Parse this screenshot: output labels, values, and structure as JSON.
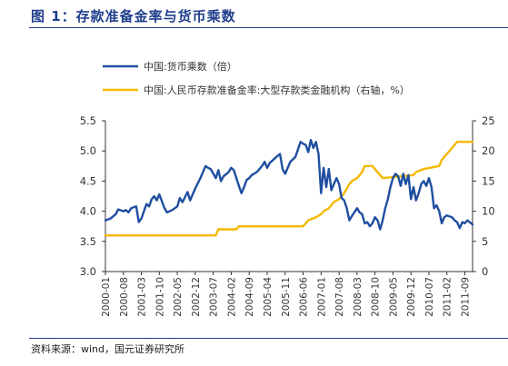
{
  "header": {
    "title": "图 1：存款准备金率与货币乘数"
  },
  "footer": {
    "source": "资料来源：wind，国元证券研究所"
  },
  "colors": {
    "title": "#1f3e8c",
    "series_1": "#1f4e9f",
    "series_2": "#f5b800"
  },
  "chart_data": {
    "type": "line",
    "grid": false,
    "legend_position": "top-left",
    "x_range": [
      "2000-01",
      "2011-12"
    ],
    "x_tick_labels": [
      "2000-01",
      "2000-08",
      "2001-03",
      "2001-10",
      "2002-05",
      "2002-12",
      "2003-07",
      "2004-02",
      "2004-09",
      "2005-04",
      "2005-11",
      "2006-06",
      "2007-01",
      "2007-08",
      "2008-03",
      "2008-10",
      "2009-05",
      "2009-12",
      "2010-07",
      "2011-02",
      "2011-09"
    ],
    "y_left": {
      "range": [
        3.0,
        5.5
      ],
      "ticks": [
        "3.0",
        "3.5",
        "4.0",
        "4.5",
        "5.0",
        "5.5"
      ]
    },
    "y_right": {
      "range": [
        0,
        25
      ],
      "ticks": [
        "0",
        "5",
        "10",
        "15",
        "20",
        "25"
      ]
    },
    "series": [
      {
        "name": "中国:货币乘数（倍）",
        "axis": "left",
        "points": [
          [
            "2000-01",
            3.85
          ],
          [
            "2000-03",
            3.88
          ],
          [
            "2000-05",
            3.95
          ],
          [
            "2000-06",
            4.03
          ],
          [
            "2000-08",
            4.0
          ],
          [
            "2000-09",
            4.02
          ],
          [
            "2000-10",
            3.98
          ],
          [
            "2000-11",
            4.05
          ],
          [
            "2001-01",
            4.08
          ],
          [
            "2001-02",
            3.82
          ],
          [
            "2001-03",
            3.88
          ],
          [
            "2001-05",
            4.12
          ],
          [
            "2001-06",
            4.08
          ],
          [
            "2001-07",
            4.2
          ],
          [
            "2001-08",
            4.25
          ],
          [
            "2001-09",
            4.18
          ],
          [
            "2001-10",
            4.28
          ],
          [
            "2001-12",
            4.05
          ],
          [
            "2002-01",
            3.98
          ],
          [
            "2002-03",
            4.02
          ],
          [
            "2002-05",
            4.08
          ],
          [
            "2002-06",
            4.22
          ],
          [
            "2002-07",
            4.15
          ],
          [
            "2002-09",
            4.32
          ],
          [
            "2002-10",
            4.18
          ],
          [
            "2002-12",
            4.38
          ],
          [
            "2003-02",
            4.55
          ],
          [
            "2003-04",
            4.75
          ],
          [
            "2003-05",
            4.72
          ],
          [
            "2003-06",
            4.7
          ],
          [
            "2003-08",
            4.55
          ],
          [
            "2003-09",
            4.68
          ],
          [
            "2003-10",
            4.5
          ],
          [
            "2003-11",
            4.58
          ],
          [
            "2004-01",
            4.65
          ],
          [
            "2004-02",
            4.72
          ],
          [
            "2004-03",
            4.68
          ],
          [
            "2004-05",
            4.42
          ],
          [
            "2004-06",
            4.3
          ],
          [
            "2004-07",
            4.4
          ],
          [
            "2004-08",
            4.52
          ],
          [
            "2004-09",
            4.55
          ],
          [
            "2004-10",
            4.6
          ],
          [
            "2004-12",
            4.65
          ],
          [
            "2005-02",
            4.75
          ],
          [
            "2005-03",
            4.82
          ],
          [
            "2005-04",
            4.72
          ],
          [
            "2005-05",
            4.8
          ],
          [
            "2005-07",
            4.88
          ],
          [
            "2005-09",
            4.95
          ],
          [
            "2005-10",
            4.7
          ],
          [
            "2005-11",
            4.62
          ],
          [
            "2006-01",
            4.82
          ],
          [
            "2006-03",
            4.9
          ],
          [
            "2006-05",
            5.15
          ],
          [
            "2006-06",
            5.12
          ],
          [
            "2006-07",
            5.1
          ],
          [
            "2006-08",
            4.98
          ],
          [
            "2006-09",
            5.18
          ],
          [
            "2006-10",
            5.05
          ],
          [
            "2006-11",
            5.15
          ],
          [
            "2006-12",
            4.95
          ],
          [
            "2007-01",
            4.3
          ],
          [
            "2007-02",
            4.72
          ],
          [
            "2007-03",
            4.4
          ],
          [
            "2007-04",
            4.7
          ],
          [
            "2007-05",
            4.35
          ],
          [
            "2007-06",
            4.45
          ],
          [
            "2007-07",
            4.55
          ],
          [
            "2007-08",
            4.45
          ],
          [
            "2007-09",
            4.22
          ],
          [
            "2007-10",
            4.18
          ],
          [
            "2007-11",
            4.05
          ],
          [
            "2007-12",
            3.85
          ],
          [
            "2008-01",
            3.92
          ],
          [
            "2008-03",
            4.05
          ],
          [
            "2008-04",
            3.98
          ],
          [
            "2008-05",
            3.95
          ],
          [
            "2008-06",
            3.8
          ],
          [
            "2008-07",
            3.82
          ],
          [
            "2008-08",
            3.75
          ],
          [
            "2008-09",
            3.8
          ],
          [
            "2008-10",
            3.9
          ],
          [
            "2008-11",
            3.85
          ],
          [
            "2008-12",
            3.7
          ],
          [
            "2009-01",
            3.85
          ],
          [
            "2009-02",
            4.05
          ],
          [
            "2009-03",
            4.2
          ],
          [
            "2009-04",
            4.4
          ],
          [
            "2009-05",
            4.55
          ],
          [
            "2009-06",
            4.62
          ],
          [
            "2009-07",
            4.58
          ],
          [
            "2009-08",
            4.42
          ],
          [
            "2009-09",
            4.62
          ],
          [
            "2009-10",
            4.45
          ],
          [
            "2009-11",
            4.6
          ],
          [
            "2009-12",
            4.2
          ],
          [
            "2010-01",
            4.4
          ],
          [
            "2010-02",
            4.18
          ],
          [
            "2010-03",
            4.3
          ],
          [
            "2010-04",
            4.45
          ],
          [
            "2010-05",
            4.5
          ],
          [
            "2010-06",
            4.42
          ],
          [
            "2010-07",
            4.55
          ],
          [
            "2010-08",
            4.4
          ],
          [
            "2010-09",
            4.05
          ],
          [
            "2010-10",
            4.1
          ],
          [
            "2010-11",
            4.0
          ],
          [
            "2010-12",
            3.8
          ],
          [
            "2011-01",
            3.9
          ],
          [
            "2011-02",
            3.93
          ],
          [
            "2011-04",
            3.9
          ],
          [
            "2011-05",
            3.85
          ],
          [
            "2011-06",
            3.82
          ],
          [
            "2011-07",
            3.72
          ],
          [
            "2011-08",
            3.82
          ],
          [
            "2011-09",
            3.8
          ],
          [
            "2011-10",
            3.85
          ],
          [
            "2011-12",
            3.78
          ]
        ]
      },
      {
        "name": "中国:人民币存款准备金率:大型存款类金融机构（右轴，%）",
        "axis": "right",
        "points": [
          [
            "2000-01",
            6
          ],
          [
            "2003-08",
            6
          ],
          [
            "2003-09",
            7
          ],
          [
            "2004-04",
            7
          ],
          [
            "2004-05",
            7.5
          ],
          [
            "2006-06",
            7.5
          ],
          [
            "2006-07",
            8
          ],
          [
            "2006-08",
            8.5
          ],
          [
            "2006-11",
            9
          ],
          [
            "2007-01",
            9.5
          ],
          [
            "2007-02",
            10
          ],
          [
            "2007-04",
            10.5
          ],
          [
            "2007-05",
            11
          ],
          [
            "2007-06",
            11.5
          ],
          [
            "2007-08",
            12
          ],
          [
            "2007-09",
            12.5
          ],
          [
            "2007-10",
            13
          ],
          [
            "2007-12",
            14.5
          ],
          [
            "2008-01",
            15
          ],
          [
            "2008-03",
            15.5
          ],
          [
            "2008-04",
            16
          ],
          [
            "2008-05",
            16.5
          ],
          [
            "2008-06",
            17.5
          ],
          [
            "2008-09",
            17.5
          ],
          [
            "2008-10",
            17
          ],
          [
            "2008-12",
            16
          ],
          [
            "2009-01",
            15.5
          ],
          [
            "2010-01",
            16
          ],
          [
            "2010-02",
            16.5
          ],
          [
            "2010-05",
            17
          ],
          [
            "2010-11",
            17.5
          ],
          [
            "2010-12",
            18.5
          ],
          [
            "2011-01",
            19
          ],
          [
            "2011-02",
            19.5
          ],
          [
            "2011-03",
            20
          ],
          [
            "2011-04",
            20.5
          ],
          [
            "2011-05",
            21
          ],
          [
            "2011-06",
            21.5
          ],
          [
            "2011-12",
            21.5
          ]
        ]
      }
    ]
  }
}
